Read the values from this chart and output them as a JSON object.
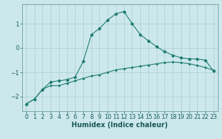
{
  "xlabel": "Humidex (Indice chaleur)",
  "ylabel": "",
  "background_color": "#cce8ec",
  "grid_color": "#aacccc",
  "line_color": "#1a7a6e",
  "x_values": [
    0,
    1,
    2,
    3,
    4,
    5,
    6,
    7,
    8,
    9,
    10,
    11,
    12,
    13,
    14,
    15,
    16,
    17,
    18,
    19,
    20,
    21,
    22,
    23
  ],
  "line1_y": [
    -2.3,
    -2.1,
    -1.7,
    -1.4,
    -1.35,
    -1.3,
    -1.2,
    -0.55,
    0.55,
    0.8,
    1.15,
    1.4,
    1.5,
    1.0,
    0.55,
    0.3,
    0.05,
    -0.15,
    -0.3,
    -0.4,
    -0.45,
    -0.45,
    -0.5,
    -0.95
  ],
  "line2_y": [
    -2.3,
    -2.1,
    -1.7,
    -1.55,
    -1.55,
    -1.45,
    -1.35,
    -1.25,
    -1.15,
    -1.1,
    -1.0,
    -0.9,
    -0.85,
    -0.8,
    -0.75,
    -0.7,
    -0.65,
    -0.6,
    -0.58,
    -0.6,
    -0.65,
    -0.72,
    -0.8,
    -0.92
  ],
  "ylim": [
    -2.6,
    1.8
  ],
  "xlim": [
    -0.5,
    23.5
  ],
  "yticks": [
    -2,
    -1,
    0,
    1
  ],
  "xticks": [
    0,
    1,
    2,
    3,
    4,
    5,
    6,
    7,
    8,
    9,
    10,
    11,
    12,
    13,
    14,
    15,
    16,
    17,
    18,
    19,
    20,
    21,
    22,
    23
  ],
  "tick_fontsize": 6,
  "xlabel_fontsize": 7,
  "line_width": 0.8,
  "marker_size1": 2.5,
  "marker_size2": 1.8
}
